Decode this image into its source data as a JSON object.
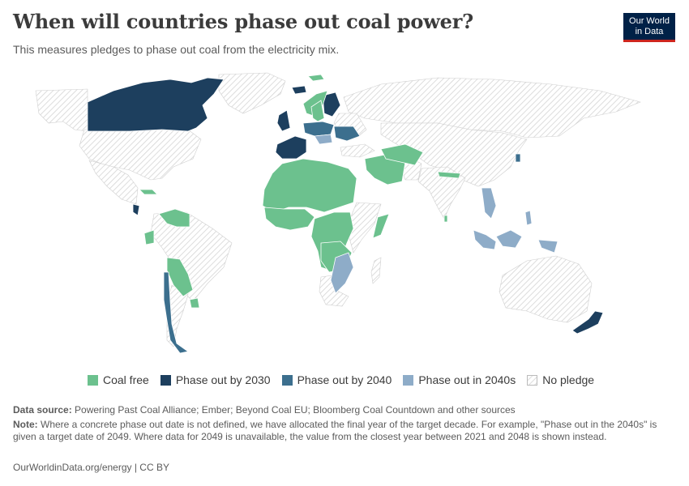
{
  "title": "When will countries phase out coal power?",
  "subtitle": "This measures pledges to phase out coal from the electricity mix.",
  "logo": {
    "line1": "Our World",
    "line2": "in Data"
  },
  "colors": {
    "coal_free": "#6cc18e",
    "by_2030": "#1d3f5e",
    "by_2040": "#3c6f8e",
    "in_2040s": "#8eacc8",
    "no_pledge": "#d7d7d7",
    "background": "#ffffff"
  },
  "legend": [
    {
      "label": "Coal free",
      "key": "coal_free"
    },
    {
      "label": "Phase out by 2030",
      "key": "by_2030"
    },
    {
      "label": "Phase out by 2040",
      "key": "by_2040"
    },
    {
      "label": "Phase out in 2040s",
      "key": "in_2040s"
    },
    {
      "label": "No pledge",
      "key": "no_pledge"
    }
  ],
  "footer": {
    "source_label": "Data source:",
    "source_text": " Powering Past Coal Alliance; Ember; Beyond Coal EU; Bloomberg Coal Countdown and other sources",
    "note_label": "Note:",
    "note_text": " Where a concrete phase out date is not defined, we have allocated the final year of the target decade. For example, \"Phase out in the 2040s\" is given a target date of 2049. Where data for 2049 is unavailable, the value from the closest year between 2021 and 2048 is shown instead.",
    "credit": "OurWorldinData.org/energy | CC BY"
  }
}
